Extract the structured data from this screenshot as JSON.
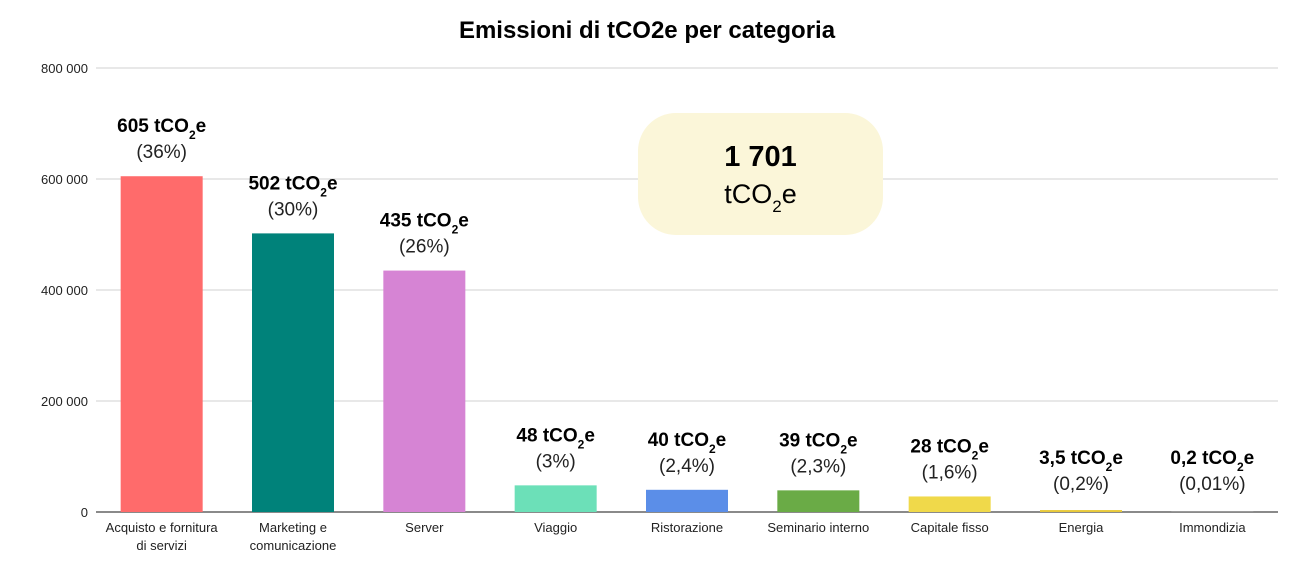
{
  "chart_data": {
    "type": "bar",
    "title": "Emissioni di tCO2e per categoria",
    "xlabel": "",
    "ylabel": "",
    "ylim": [
      0,
      800000
    ],
    "y_ticks": [
      "0",
      "200 000",
      "400 000",
      "600 000",
      "800 000"
    ],
    "y_tick_values": [
      0,
      200000,
      400000,
      600000,
      800000
    ],
    "grid": true,
    "categories": [
      [
        "Acquisto e fornitura",
        "di servizi"
      ],
      [
        "Marketing e",
        "comunicazione"
      ],
      [
        "Server"
      ],
      [
        "Viaggio"
      ],
      [
        "Ristorazione"
      ],
      [
        "Seminario interno"
      ],
      [
        "Capitale fisso"
      ],
      [
        "Energia"
      ],
      [
        "Immondizia"
      ]
    ],
    "values": [
      605000,
      502000,
      435000,
      48000,
      40000,
      39000,
      28000,
      3500,
      200
    ],
    "colors": [
      "#ff6b6b",
      "#00827a",
      "#d684d4",
      "#6ce0b8",
      "#5b8ee8",
      "#6aab46",
      "#f0d94a",
      "#e8c93a",
      "#cccccc"
    ],
    "data_labels": [
      {
        "value": "605",
        "unit_pre": " tCO",
        "unit_sub": "2",
        "unit_post": "e",
        "pct": "(36%)"
      },
      {
        "value": "502",
        "unit_pre": " tCO",
        "unit_sub": "2",
        "unit_post": "e",
        "pct": "(30%)"
      },
      {
        "value": "435",
        "unit_pre": " tCO",
        "unit_sub": "2",
        "unit_post": "e",
        "pct": "(26%)"
      },
      {
        "value": "48",
        "unit_pre": " tCO",
        "unit_sub": "2",
        "unit_post": "e",
        "pct": "(3%)"
      },
      {
        "value": "40",
        "unit_pre": " tCO",
        "unit_sub": "2",
        "unit_post": "e",
        "pct": "(2,4%)"
      },
      {
        "value": "39",
        "unit_pre": " tCO",
        "unit_sub": "2",
        "unit_post": "e",
        "pct": "(2,3%)"
      },
      {
        "value": "28",
        "unit_pre": " tCO",
        "unit_sub": "2",
        "unit_post": "e",
        "pct": "(1,6%)"
      },
      {
        "value": "3,5",
        "unit_pre": " tCO",
        "unit_sub": "2",
        "unit_post": "e",
        "pct": "(0,2%)"
      },
      {
        "value": "0,2",
        "unit_pre": " tCO",
        "unit_sub": "2",
        "unit_post": "e",
        "pct": "(0,01%)"
      }
    ],
    "annotation": {
      "total": "1 701",
      "unit_pre": "tCO",
      "unit_sub": "2",
      "unit_post": "e"
    }
  }
}
